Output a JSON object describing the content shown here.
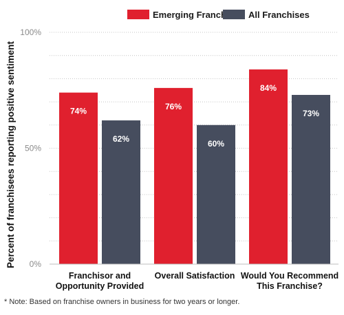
{
  "chart_data": {
    "type": "bar",
    "ylabel": "Percent of franchisees reporting positive sentiment",
    "ylim": [
      0,
      100
    ],
    "yticks": [
      {
        "value": 0,
        "label": "0%"
      },
      {
        "value": 50,
        "label": "50%"
      },
      {
        "value": 100,
        "label": "100%"
      }
    ],
    "categories": [
      [
        "Franchisor and",
        "Opportunity Provided"
      ],
      [
        "Overall Satisfaction"
      ],
      [
        "Would You Recommend",
        "This Franchise?"
      ]
    ],
    "series": [
      {
        "name": "Emerging Franchises",
        "color": "#e0202e",
        "values": [
          74,
          76,
          84
        ],
        "labels": [
          "74%",
          "76%",
          "84%"
        ]
      },
      {
        "name": "All Franchises",
        "color": "#464d5e",
        "values": [
          62,
          60,
          73
        ],
        "labels": [
          "62%",
          "60%",
          "73%"
        ]
      }
    ],
    "grid": true,
    "legend_position": "top-right"
  },
  "note": "* Note: Based on franchise owners in business for two years or longer."
}
